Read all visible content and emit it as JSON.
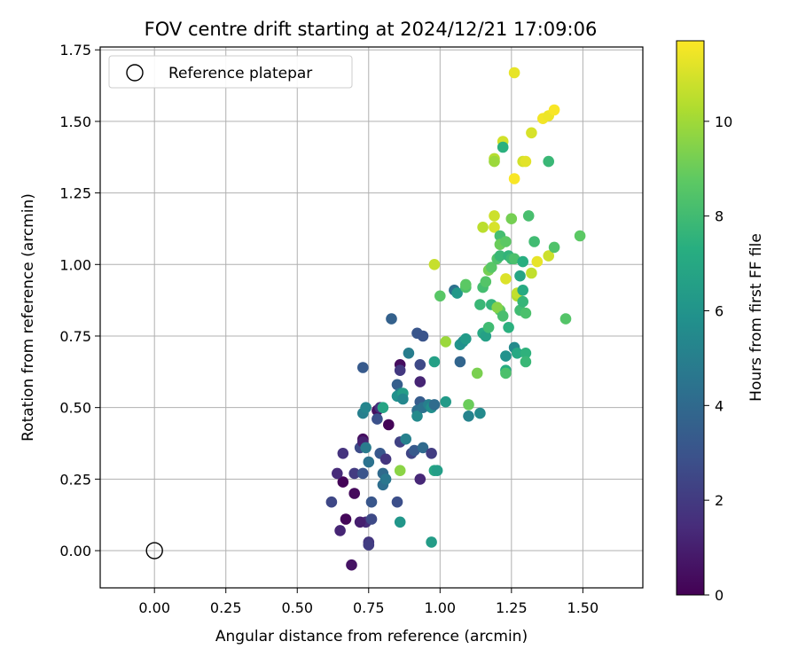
{
  "chart_data": {
    "type": "scatter",
    "title": "FOV centre drift starting at 2024/12/21 17:09:06",
    "xlabel": "Angular distance from reference (arcmin)",
    "ylabel": "Rotation from reference (arcmin)",
    "xlim": [
      -0.19,
      1.71
    ],
    "ylim": [
      -0.13,
      1.76
    ],
    "xticks": [
      0.0,
      0.25,
      0.5,
      0.75,
      1.0,
      1.25,
      1.5
    ],
    "xtick_labels": [
      "0.00",
      "0.25",
      "0.50",
      "0.75",
      "1.00",
      "1.25",
      "1.50"
    ],
    "yticks": [
      0.0,
      0.25,
      0.5,
      0.75,
      1.0,
      1.25,
      1.5,
      1.75
    ],
    "ytick_labels": [
      "0.00",
      "0.25",
      "0.50",
      "0.75",
      "1.00",
      "1.25",
      "1.50",
      "1.75"
    ],
    "grid": true,
    "legend": {
      "position": "upper-left",
      "entries": [
        "Reference platepar"
      ]
    },
    "reference_point": {
      "x": 0.0,
      "y": 0.0
    },
    "colorbar": {
      "label": "Hours from first FF file",
      "colormap": "viridis",
      "min": 0,
      "max": 11.7,
      "ticks": [
        0,
        2,
        4,
        6,
        8,
        10
      ],
      "tick_labels": [
        "0",
        "2",
        "4",
        "6",
        "8",
        "10"
      ]
    },
    "points": [
      {
        "x": 0.69,
        "y": -0.05,
        "h": 0.6
      },
      {
        "x": 0.67,
        "y": 0.11,
        "h": 0.2
      },
      {
        "x": 0.65,
        "y": 0.07,
        "h": 1.2
      },
      {
        "x": 0.74,
        "y": 0.1,
        "h": 1.5
      },
      {
        "x": 0.75,
        "y": 0.03,
        "h": 1.8
      },
      {
        "x": 0.75,
        "y": 0.02,
        "h": 2.1
      },
      {
        "x": 0.72,
        "y": 0.1,
        "h": 1.0
      },
      {
        "x": 0.76,
        "y": 0.11,
        "h": 2.6
      },
      {
        "x": 0.62,
        "y": 0.17,
        "h": 2.5
      },
      {
        "x": 0.7,
        "y": 0.2,
        "h": 0.3
      },
      {
        "x": 0.66,
        "y": 0.24,
        "h": 0.1
      },
      {
        "x": 0.64,
        "y": 0.27,
        "h": 1.4
      },
      {
        "x": 0.66,
        "y": 0.34,
        "h": 1.7
      },
      {
        "x": 0.7,
        "y": 0.27,
        "h": 2.0
      },
      {
        "x": 0.72,
        "y": 0.36,
        "h": 2.7
      },
      {
        "x": 0.73,
        "y": 0.39,
        "h": 0.4
      },
      {
        "x": 0.73,
        "y": 0.38,
        "h": 1.1
      },
      {
        "x": 0.74,
        "y": 0.36,
        "h": 4.8
      },
      {
        "x": 0.73,
        "y": 0.27,
        "h": 3.0
      },
      {
        "x": 0.75,
        "y": 0.31,
        "h": 4.4
      },
      {
        "x": 0.76,
        "y": 0.17,
        "h": 3.1
      },
      {
        "x": 0.78,
        "y": 0.49,
        "h": 0.5
      },
      {
        "x": 0.79,
        "y": 0.5,
        "h": 1.6
      },
      {
        "x": 0.78,
        "y": 0.46,
        "h": 2.9
      },
      {
        "x": 0.79,
        "y": 0.34,
        "h": 3.2
      },
      {
        "x": 0.81,
        "y": 0.32,
        "h": 1.8
      },
      {
        "x": 0.8,
        "y": 0.27,
        "h": 4.0
      },
      {
        "x": 0.8,
        "y": 0.23,
        "h": 4.2
      },
      {
        "x": 0.81,
        "y": 0.25,
        "h": 4.6
      },
      {
        "x": 0.82,
        "y": 0.44,
        "h": 0.1
      },
      {
        "x": 0.8,
        "y": 0.5,
        "h": 6.8
      },
      {
        "x": 0.73,
        "y": 0.48,
        "h": 5.0
      },
      {
        "x": 0.74,
        "y": 0.5,
        "h": 5.3
      },
      {
        "x": 0.73,
        "y": 0.64,
        "h": 3.3
      },
      {
        "x": 0.83,
        "y": 0.81,
        "h": 3.6
      },
      {
        "x": 0.85,
        "y": 0.58,
        "h": 3.5
      },
      {
        "x": 0.86,
        "y": 0.65,
        "h": 0.4
      },
      {
        "x": 0.86,
        "y": 0.63,
        "h": 1.9
      },
      {
        "x": 0.86,
        "y": 0.55,
        "h": 4.7
      },
      {
        "x": 0.85,
        "y": 0.54,
        "h": 5.8
      },
      {
        "x": 0.87,
        "y": 0.55,
        "h": 6.4
      },
      {
        "x": 0.87,
        "y": 0.53,
        "h": 5.4
      },
      {
        "x": 0.86,
        "y": 0.38,
        "h": 2.3
      },
      {
        "x": 0.88,
        "y": 0.39,
        "h": 5.1
      },
      {
        "x": 0.89,
        "y": 0.69,
        "h": 4.9
      },
      {
        "x": 0.9,
        "y": 0.34,
        "h": 2.4
      },
      {
        "x": 0.85,
        "y": 0.17,
        "h": 2.8
      },
      {
        "x": 0.86,
        "y": 0.1,
        "h": 6.1
      },
      {
        "x": 0.86,
        "y": 0.28,
        "h": 9.6
      },
      {
        "x": 0.92,
        "y": 0.76,
        "h": 3.1
      },
      {
        "x": 0.94,
        "y": 0.75,
        "h": 3.0
      },
      {
        "x": 0.93,
        "y": 0.65,
        "h": 2.6
      },
      {
        "x": 0.93,
        "y": 0.59,
        "h": 1.2
      },
      {
        "x": 0.93,
        "y": 0.52,
        "h": 3.4
      },
      {
        "x": 0.92,
        "y": 0.49,
        "h": 4.3
      },
      {
        "x": 0.92,
        "y": 0.47,
        "h": 5.5
      },
      {
        "x": 0.93,
        "y": 0.25,
        "h": 1.3
      },
      {
        "x": 0.91,
        "y": 0.35,
        "h": 3.3
      },
      {
        "x": 0.94,
        "y": 0.36,
        "h": 4.0
      },
      {
        "x": 0.97,
        "y": 0.34,
        "h": 2.1
      },
      {
        "x": 0.94,
        "y": 0.5,
        "h": 4.4
      },
      {
        "x": 0.96,
        "y": 0.51,
        "h": 5.0
      },
      {
        "x": 0.97,
        "y": 0.5,
        "h": 5.7
      },
      {
        "x": 0.98,
        "y": 0.51,
        "h": 4.1
      },
      {
        "x": 0.98,
        "y": 0.66,
        "h": 6.6
      },
      {
        "x": 0.98,
        "y": 0.28,
        "h": 6.9
      },
      {
        "x": 0.99,
        "y": 0.28,
        "h": 6.5
      },
      {
        "x": 0.98,
        "y": 1.0,
        "h": 10.7
      },
      {
        "x": 1.0,
        "y": 0.89,
        "h": 8.6
      },
      {
        "x": 1.02,
        "y": 0.52,
        "h": 6.3
      },
      {
        "x": 1.02,
        "y": 0.73,
        "h": 9.9
      },
      {
        "x": 1.05,
        "y": 0.91,
        "h": 4.3
      },
      {
        "x": 1.06,
        "y": 0.9,
        "h": 6.2
      },
      {
        "x": 1.07,
        "y": 0.72,
        "h": 6.0
      },
      {
        "x": 1.08,
        "y": 0.73,
        "h": 5.8
      },
      {
        "x": 1.07,
        "y": 0.66,
        "h": 3.8
      },
      {
        "x": 1.09,
        "y": 0.74,
        "h": 6.3
      },
      {
        "x": 1.09,
        "y": 0.92,
        "h": 8.4
      },
      {
        "x": 1.09,
        "y": 0.93,
        "h": 8.7
      },
      {
        "x": 1.1,
        "y": 0.51,
        "h": 9.0
      },
      {
        "x": 1.1,
        "y": 0.47,
        "h": 5.2
      },
      {
        "x": 1.14,
        "y": 0.48,
        "h": 5.5
      },
      {
        "x": 1.13,
        "y": 0.62,
        "h": 9.3
      },
      {
        "x": 1.14,
        "y": 0.86,
        "h": 7.8
      },
      {
        "x": 1.15,
        "y": 0.92,
        "h": 8.1
      },
      {
        "x": 1.15,
        "y": 0.76,
        "h": 7.0
      },
      {
        "x": 1.16,
        "y": 0.75,
        "h": 6.6
      },
      {
        "x": 1.17,
        "y": 0.78,
        "h": 8.0
      },
      {
        "x": 1.16,
        "y": 0.94,
        "h": 8.5
      },
      {
        "x": 1.17,
        "y": 0.98,
        "h": 9.2
      },
      {
        "x": 1.18,
        "y": 0.86,
        "h": 7.6
      },
      {
        "x": 1.18,
        "y": 0.99,
        "h": 8.6
      },
      {
        "x": 1.15,
        "y": 1.13,
        "h": 10.5
      },
      {
        "x": 1.19,
        "y": 1.13,
        "h": 11.0
      },
      {
        "x": 1.19,
        "y": 1.17,
        "h": 10.8
      },
      {
        "x": 1.19,
        "y": 1.37,
        "h": 10.4
      },
      {
        "x": 1.19,
        "y": 1.36,
        "h": 9.9
      },
      {
        "x": 1.2,
        "y": 1.02,
        "h": 8.4
      },
      {
        "x": 1.21,
        "y": 1.03,
        "h": 7.8
      },
      {
        "x": 1.21,
        "y": 1.1,
        "h": 8.1
      },
      {
        "x": 1.21,
        "y": 1.07,
        "h": 9.0
      },
      {
        "x": 1.22,
        "y": 1.43,
        "h": 10.9
      },
      {
        "x": 1.22,
        "y": 1.41,
        "h": 7.4
      },
      {
        "x": 1.21,
        "y": 0.84,
        "h": 8.8
      },
      {
        "x": 1.2,
        "y": 0.85,
        "h": 9.5
      },
      {
        "x": 1.22,
        "y": 0.82,
        "h": 8.2
      },
      {
        "x": 1.23,
        "y": 0.95,
        "h": 11.1
      },
      {
        "x": 1.23,
        "y": 0.63,
        "h": 7.2
      },
      {
        "x": 1.23,
        "y": 0.62,
        "h": 8.3
      },
      {
        "x": 1.23,
        "y": 0.68,
        "h": 5.9
      },
      {
        "x": 1.24,
        "y": 0.78,
        "h": 7.4
      },
      {
        "x": 1.24,
        "y": 1.03,
        "h": 7.6
      },
      {
        "x": 1.25,
        "y": 1.02,
        "h": 7.9
      },
      {
        "x": 1.26,
        "y": 1.02,
        "h": 8.3
      },
      {
        "x": 1.25,
        "y": 1.16,
        "h": 9.2
      },
      {
        "x": 1.23,
        "y": 1.08,
        "h": 8.7
      },
      {
        "x": 1.26,
        "y": 1.67,
        "h": 11.3
      },
      {
        "x": 1.26,
        "y": 1.3,
        "h": 11.6
      },
      {
        "x": 1.26,
        "y": 0.71,
        "h": 5.5
      },
      {
        "x": 1.27,
        "y": 0.69,
        "h": 7.0
      },
      {
        "x": 1.27,
        "y": 0.89,
        "h": 10.3
      },
      {
        "x": 1.27,
        "y": 0.9,
        "h": 10.6
      },
      {
        "x": 1.28,
        "y": 0.96,
        "h": 6.8
      },
      {
        "x": 1.28,
        "y": 0.84,
        "h": 8.0
      },
      {
        "x": 1.29,
        "y": 0.87,
        "h": 7.7
      },
      {
        "x": 1.29,
        "y": 0.91,
        "h": 7.1
      },
      {
        "x": 1.29,
        "y": 1.01,
        "h": 7.3
      },
      {
        "x": 1.29,
        "y": 1.36,
        "h": 10.9
      },
      {
        "x": 1.3,
        "y": 1.36,
        "h": 11.2
      },
      {
        "x": 1.3,
        "y": 0.69,
        "h": 7.5
      },
      {
        "x": 1.3,
        "y": 0.66,
        "h": 7.8
      },
      {
        "x": 1.3,
        "y": 0.83,
        "h": 8.3
      },
      {
        "x": 1.31,
        "y": 1.17,
        "h": 8.2
      },
      {
        "x": 1.32,
        "y": 0.97,
        "h": 10.6
      },
      {
        "x": 1.32,
        "y": 1.46,
        "h": 11.0
      },
      {
        "x": 1.33,
        "y": 1.08,
        "h": 8.0
      },
      {
        "x": 1.34,
        "y": 1.01,
        "h": 11.3
      },
      {
        "x": 1.36,
        "y": 1.51,
        "h": 11.5
      },
      {
        "x": 1.38,
        "y": 1.52,
        "h": 11.4
      },
      {
        "x": 1.38,
        "y": 1.36,
        "h": 7.8
      },
      {
        "x": 1.38,
        "y": 1.03,
        "h": 10.8
      },
      {
        "x": 1.4,
        "y": 1.06,
        "h": 8.4
      },
      {
        "x": 1.4,
        "y": 1.54,
        "h": 11.6
      },
      {
        "x": 1.44,
        "y": 0.81,
        "h": 8.5
      },
      {
        "x": 1.49,
        "y": 1.1,
        "h": 8.7
      },
      {
        "x": 0.97,
        "y": 0.03,
        "h": 6.4
      }
    ]
  }
}
